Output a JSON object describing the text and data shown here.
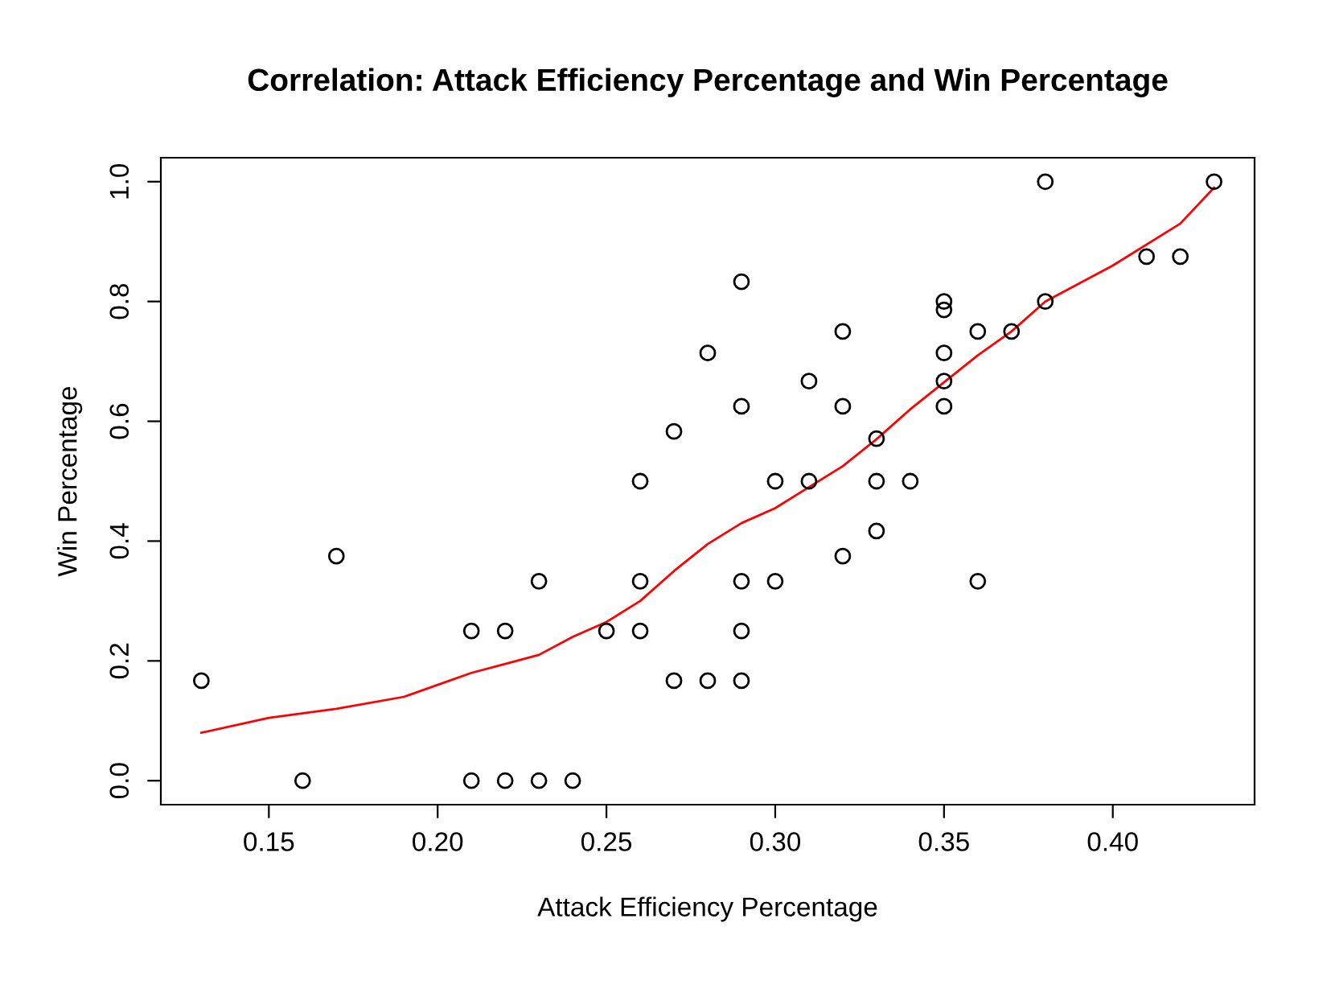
{
  "chart_data": {
    "type": "scatter",
    "title": "Correlation: Attack Efficiency Percentage and Win Percentage",
    "xlabel": "Attack Efficiency Percentage",
    "ylabel": "Win Percentage",
    "xlim": [
      0.118,
      0.442
    ],
    "ylim": [
      -0.04,
      1.04
    ],
    "xticks": [
      0.15,
      {
        "value": 0.2,
        "label": "0.20"
      },
      0.25,
      {
        "value": 0.3,
        "label": "0.30"
      },
      0.35,
      {
        "value": 0.4,
        "label": "0.40"
      }
    ],
    "yticks": [
      {
        "value": 0,
        "label": "0.0"
      },
      0.2,
      0.4,
      0.6,
      0.8,
      {
        "value": 1,
        "label": "1.0"
      }
    ],
    "grid": false,
    "legend": false,
    "marker": "circle",
    "series": [
      {
        "color": "#000000",
        "x": [
          0.13,
          0.16,
          0.17,
          0.21,
          0.21,
          0.22,
          0.22,
          0.23,
          0.23,
          0.24,
          0.25,
          0.26,
          0.26,
          0.26,
          0.27,
          0.27,
          0.28,
          0.28,
          0.29,
          0.29,
          0.29,
          0.29,
          0.29,
          0.3,
          0.3,
          0.31,
          0.31,
          0.32,
          0.32,
          0.32,
          0.33,
          0.33,
          0.33,
          0.34,
          0.35,
          0.35,
          0.35,
          0.35,
          0.35,
          0.36,
          0.36,
          0.37,
          0.38,
          0.38,
          0.41,
          0.42,
          0.43
        ],
        "values": [
          0.167,
          0,
          0.375,
          0.25,
          0,
          0.25,
          0,
          0.333,
          0,
          0,
          0.25,
          0.5,
          0.333,
          0.25,
          0.583,
          0.167,
          0.714,
          0.167,
          0.833,
          0.625,
          0.333,
          0.25,
          0.167,
          0.5,
          0.333,
          0.667,
          0.5,
          0.75,
          0.625,
          0.375,
          0.571,
          0.5,
          0.417,
          0.5,
          0.8,
          0.786,
          0.714,
          0.667,
          0.625,
          0.75,
          0.333,
          0.75,
          1.0,
          0.8,
          0.875,
          0.875,
          1.0
        ]
      },
      {
        "type": "line",
        "marker": "none",
        "line_style": "solid",
        "color": "#ff0000",
        "x": [
          0.13,
          0.15,
          0.17,
          0.19,
          0.2,
          0.21,
          0.22,
          0.23,
          0.24,
          0.25,
          0.26,
          0.27,
          0.28,
          0.29,
          0.3,
          0.31,
          0.32,
          0.33,
          0.34,
          0.35,
          0.36,
          0.37,
          0.38,
          0.4,
          0.42,
          0.43
        ],
        "values": [
          0.08,
          0.105,
          0.12,
          0.14,
          0.16,
          0.18,
          0.195,
          0.21,
          0.24,
          0.265,
          0.3,
          0.35,
          0.395,
          0.43,
          0.455,
          0.49,
          0.525,
          0.57,
          0.62,
          0.665,
          0.71,
          0.75,
          0.8,
          0.86,
          0.93,
          0.99
        ]
      }
    ]
  }
}
